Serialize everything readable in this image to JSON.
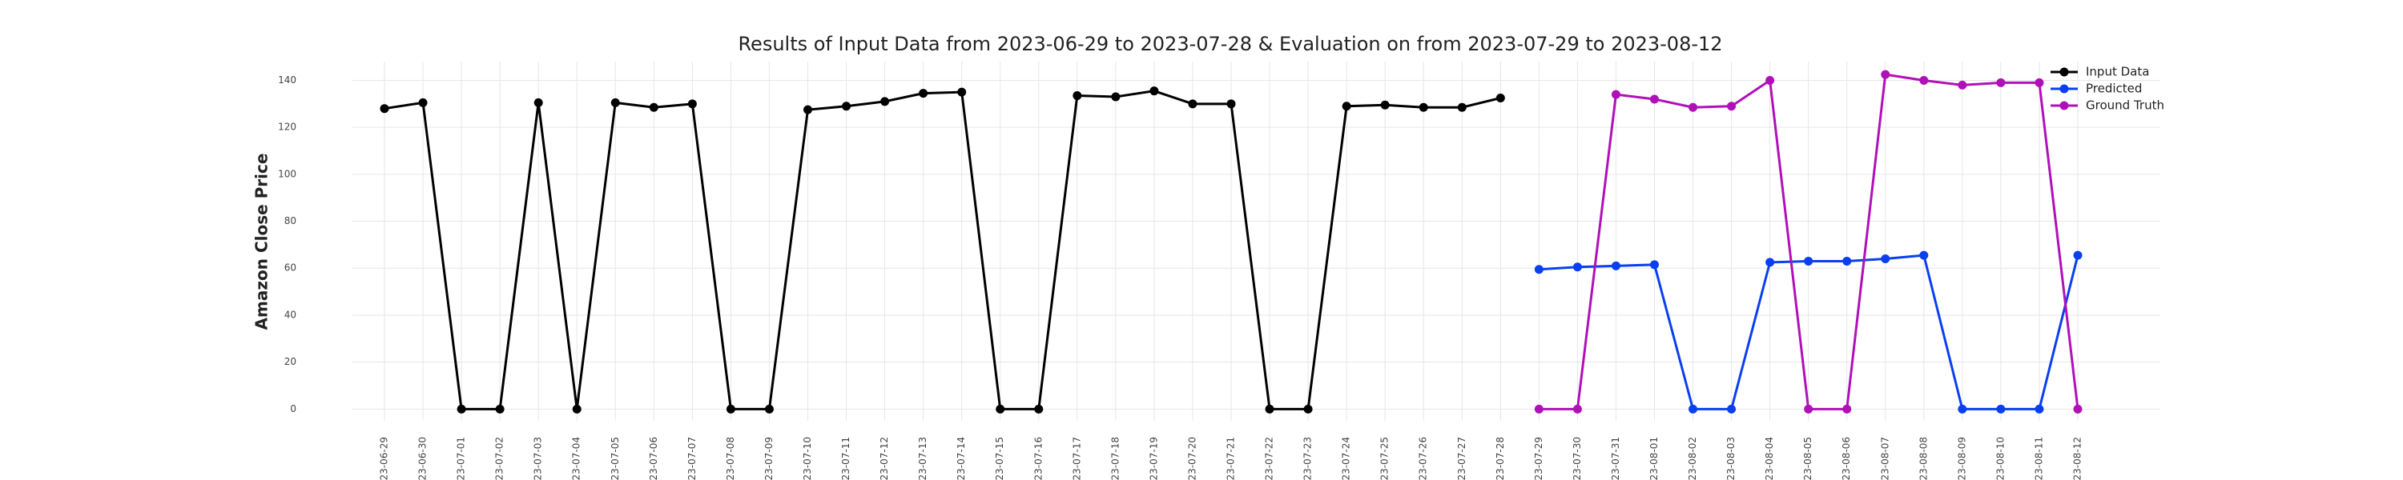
{
  "chart_data": {
    "type": "line",
    "title": "Results of Input Data from 2023-06-29 to 2023-07-28 & Evaluation on from 2023-07-29 to 2023-08-12",
    "ylabel": "Amazon Close Price",
    "categories": [
      "2023-06-29",
      "2023-06-30",
      "2023-07-01",
      "2023-07-02",
      "2023-07-03",
      "2023-07-04",
      "2023-07-05",
      "2023-07-06",
      "2023-07-07",
      "2023-07-08",
      "2023-07-09",
      "2023-07-10",
      "2023-07-11",
      "2023-07-12",
      "2023-07-13",
      "2023-07-14",
      "2023-07-15",
      "2023-07-16",
      "2023-07-17",
      "2023-07-18",
      "2023-07-19",
      "2023-07-20",
      "2023-07-21",
      "2023-07-22",
      "2023-07-23",
      "2023-07-24",
      "2023-07-25",
      "2023-07-26",
      "2023-07-27",
      "2023-07-28",
      "2023-07-29",
      "2023-07-30",
      "2023-07-31",
      "2023-08-01",
      "2023-08-02",
      "2023-08-03",
      "2023-08-04",
      "2023-08-05",
      "2023-08-06",
      "2023-08-07",
      "2023-08-08",
      "2023-08-09",
      "2023-08-10",
      "2023-08-11",
      "2023-08-12"
    ],
    "series": [
      {
        "name": "Input Data",
        "color": "#000000",
        "values": [
          128,
          130.5,
          0,
          0,
          130.5,
          0,
          130.5,
          128.5,
          130,
          0,
          0,
          127.5,
          129,
          131,
          134.5,
          135,
          0,
          0,
          133.5,
          133,
          135.5,
          130,
          130,
          0,
          0,
          129,
          129.5,
          128.5,
          128.5,
          132.5,
          null,
          null,
          null,
          null,
          null,
          null,
          null,
          null,
          null,
          null,
          null,
          null,
          null,
          null,
          null
        ]
      },
      {
        "name": "Predicted",
        "color": "#0a3ff0",
        "values": [
          null,
          null,
          null,
          null,
          null,
          null,
          null,
          null,
          null,
          null,
          null,
          null,
          null,
          null,
          null,
          null,
          null,
          null,
          null,
          null,
          null,
          null,
          null,
          null,
          null,
          null,
          null,
          null,
          null,
          null,
          59.5,
          60.5,
          61,
          61.5,
          0,
          0,
          62.5,
          63,
          63,
          64,
          65.5,
          0,
          0,
          0,
          65.5
        ]
      },
      {
        "name": "Ground Truth",
        "color": "#b010b8",
        "values": [
          null,
          null,
          null,
          null,
          null,
          null,
          null,
          null,
          null,
          null,
          null,
          null,
          null,
          null,
          null,
          null,
          null,
          null,
          null,
          null,
          null,
          null,
          null,
          null,
          null,
          null,
          null,
          null,
          null,
          null,
          0,
          0,
          134,
          132,
          128.5,
          129,
          140,
          0,
          0,
          142.5,
          140,
          138,
          139,
          139,
          0
        ]
      }
    ],
    "ylim": [
      -5,
      148
    ],
    "yticks": [
      0,
      20,
      40,
      60,
      80,
      100,
      120,
      140
    ],
    "grid": true,
    "legend": "upper right"
  }
}
